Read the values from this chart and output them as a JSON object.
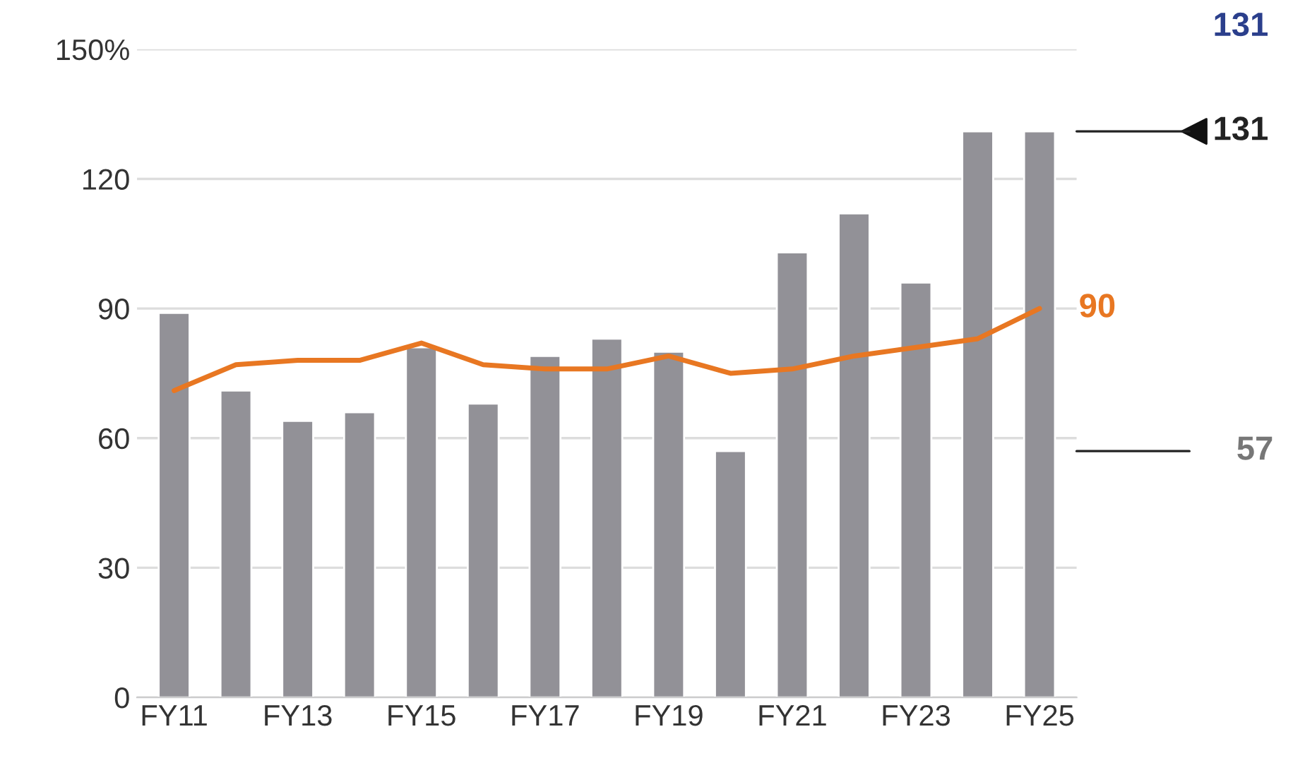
{
  "chart_data": {
    "type": "bar",
    "categories": [
      "FY11",
      null,
      "FY13",
      null,
      "FY15",
      null,
      "FY17",
      null,
      "FY19",
      null,
      "FY21",
      null,
      "FY23",
      null,
      "FY25"
    ],
    "series": [
      {
        "color": "#929197",
        "values": [
          89,
          71,
          64,
          66,
          81,
          68,
          79,
          83,
          80,
          57,
          103,
          112,
          96,
          131,
          131
        ]
      },
      {
        "type": "line",
        "color": "#e87722",
        "values": [
          71,
          77,
          78,
          78,
          82,
          77,
          76,
          76,
          79,
          75,
          76,
          79,
          81,
          83,
          90
        ],
        "value_labels": [
          null,
          null,
          null,
          null,
          null,
          null,
          null,
          null,
          null,
          null,
          null,
          null,
          null,
          null,
          "90"
        ]
      }
    ],
    "ylim": [
      0,
      150
    ],
    "yticks": [
      0,
      30,
      60,
      90,
      120,
      {
        "value": 150,
        "label": "150%"
      }
    ],
    "grid": "y",
    "ref_lines": [
      {
        "axis": "y",
        "value": 131,
        "label": "131",
        "color": "#222222"
      },
      {
        "axis": "y",
        "value": 57,
        "label": "57",
        "color": "#222222"
      }
    ],
    "annotations": [
      "131"
    ]
  }
}
